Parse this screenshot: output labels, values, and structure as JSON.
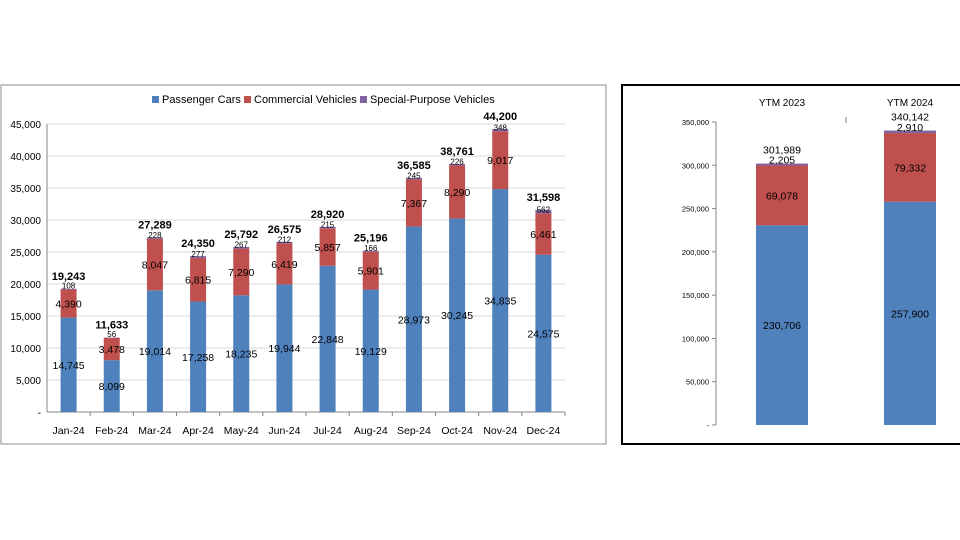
{
  "chart_data": [
    {
      "type": "bar",
      "stacked": true,
      "categories": [
        "Jan-24",
        "Feb-24",
        "Mar-24",
        "Apr-24",
        "May-24",
        "Jun-24",
        "Jul-24",
        "Aug-24",
        "Sep-24",
        "Oct-24",
        "Nov-24",
        "Dec-24"
      ],
      "series": [
        {
          "name": "Passenger Cars",
          "color": "#4f81bd",
          "values": [
            14745,
            8099,
            19014,
            17258,
            18235,
            19944,
            22848,
            19129,
            28973,
            30245,
            34835,
            24575
          ],
          "labels": [
            "14,745",
            "8,099",
            "19,014",
            "17,258",
            "18,235",
            "19,944",
            "22,848",
            "19,129",
            "28,973",
            "30,245",
            "34,835",
            "24,575"
          ]
        },
        {
          "name": "Commercial Vehicles",
          "color": "#c0504d",
          "values": [
            4390,
            3478,
            8047,
            6815,
            7290,
            6419,
            5857,
            5901,
            7367,
            8290,
            9017,
            6461
          ],
          "labels": [
            "4,390",
            "3,478",
            "8,047",
            "6,815",
            "7,290",
            "6,419",
            "5,857",
            "5,901",
            "7,367",
            "8,290",
            "9,017",
            "6,461"
          ]
        },
        {
          "name": "Special-Purpose Vehicles",
          "color": "#8064a2",
          "values": [
            108,
            56,
            228,
            277,
            267,
            212,
            215,
            166,
            245,
            226,
            348,
            562
          ],
          "labels": [
            "108",
            "56",
            "228",
            "277",
            "267",
            "212",
            "215",
            "166",
            "245",
            "226",
            "348",
            "562"
          ]
        }
      ],
      "totals": [
        19243,
        11633,
        27289,
        24350,
        25792,
        26575,
        28920,
        25196,
        36585,
        38761,
        44200,
        31598
      ],
      "total_labels": [
        "19,243",
        "11,633",
        "27,289",
        "24,350",
        "25,792",
        "26,575",
        "28,920",
        "25,196",
        "36,585",
        "38,761",
        "44,200",
        "31,598"
      ],
      "ylim": [
        0,
        45000
      ],
      "yticks": [
        0,
        5000,
        10000,
        15000,
        20000,
        25000,
        30000,
        35000,
        40000,
        45000
      ],
      "ytick_labels": [
        "-",
        "5,000",
        "10,000",
        "15,000",
        "20,000",
        "25,000",
        "30,000",
        "35,000",
        "40,000",
        "45,000"
      ],
      "grid": true,
      "legend": "top-center"
    },
    {
      "type": "bar",
      "stacked": true,
      "categories": [
        "YTM 2023",
        "YTM 2024"
      ],
      "series": [
        {
          "name": "Passenger Cars",
          "color": "#4f81bd",
          "values": [
            230706,
            257900
          ],
          "labels": [
            "230,706",
            "257,900"
          ]
        },
        {
          "name": "Commercial Vehicles",
          "color": "#c0504d",
          "values": [
            69078,
            79332
          ],
          "labels": [
            "69,078",
            "79,332"
          ]
        },
        {
          "name": "Special-Purpose Vehicles",
          "color": "#8064a2",
          "values": [
            2205,
            2910
          ],
          "labels": [
            "2,205",
            "2,910"
          ]
        }
      ],
      "totals": [
        301989,
        340142
      ],
      "total_labels": [
        "301,989",
        "340,142"
      ],
      "ylim": [
        0,
        350000
      ],
      "yticks": [
        0,
        50000,
        100000,
        150000,
        200000,
        250000,
        300000,
        350000
      ],
      "ytick_labels": [
        "-",
        "50,000",
        "100,000",
        "150,000",
        "200,000",
        "250,000",
        "300,000",
        "350,000"
      ],
      "grid": false,
      "legend": "none"
    }
  ]
}
